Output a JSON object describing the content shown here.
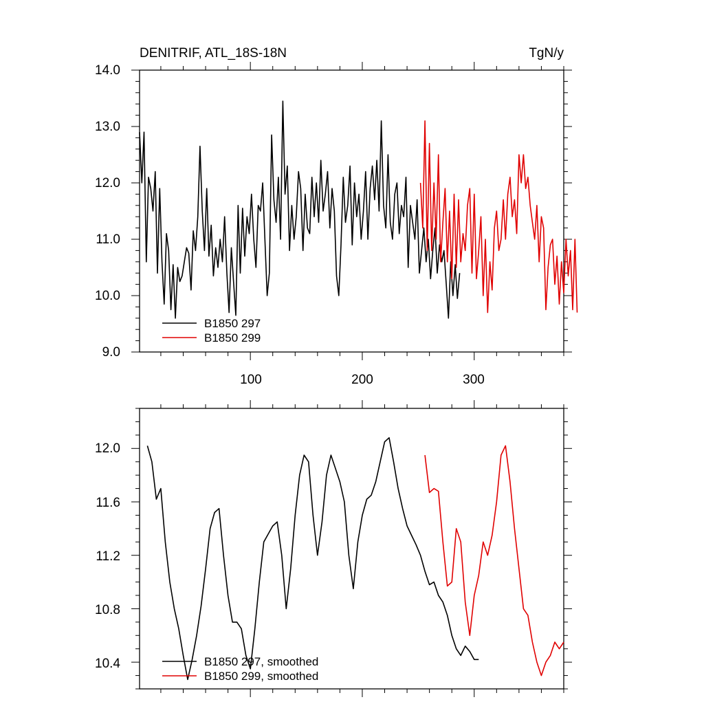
{
  "chart_data": [
    {
      "type": "line",
      "title": "DENITRIF, ATL_18S-18N",
      "units": "TgN/y",
      "xlim": [
        1,
        380
      ],
      "ylim": [
        9.0,
        14.0
      ],
      "x_ticks": [
        100,
        200,
        300
      ],
      "x_tick_labels": [
        "100",
        "200",
        "300"
      ],
      "y_ticks": [
        9.0,
        10.0,
        11.0,
        12.0,
        13.0,
        14.0
      ],
      "y_tick_labels": [
        "9.0",
        "10.0",
        "11.0",
        "12.0",
        "13.0",
        "14.0"
      ],
      "legend": [
        "B1850 297",
        "B1850 299"
      ],
      "series": [
        {
          "name": "B1850 297",
          "color": "#000000",
          "x_start": 1,
          "x_step": 2,
          "values": [
            12.9,
            12.0,
            12.9,
            10.6,
            12.1,
            11.9,
            11.5,
            12.2,
            10.4,
            11.9,
            10.6,
            9.85,
            11.1,
            10.8,
            9.75,
            10.55,
            9.6,
            10.5,
            10.25,
            10.35,
            10.6,
            10.85,
            10.75,
            10.1,
            11.15,
            10.8,
            11.4,
            12.65,
            11.5,
            10.8,
            11.9,
            10.7,
            11.25,
            10.35,
            10.85,
            10.5,
            11.0,
            10.6,
            11.4,
            10.4,
            9.7,
            10.85,
            10.25,
            9.65,
            11.6,
            10.4,
            11.55,
            10.7,
            11.4,
            11.1,
            11.8,
            11.0,
            10.5,
            11.6,
            11.5,
            12.0,
            11.0,
            10.0,
            10.4,
            12.85,
            11.7,
            11.3,
            12.1,
            11.0,
            13.45,
            11.8,
            12.3,
            10.8,
            11.6,
            11.0,
            11.4,
            12.2,
            11.9,
            10.8,
            11.8,
            11.2,
            11.1,
            12.1,
            11.4,
            12.0,
            11.3,
            12.4,
            11.5,
            11.8,
            12.2,
            11.2,
            11.9,
            11.5,
            10.35,
            10.0,
            10.9,
            12.1,
            11.3,
            11.6,
            12.3,
            10.9,
            12.0,
            11.4,
            11.8,
            11.0,
            11.5,
            12.2,
            11.0,
            11.9,
            12.3,
            11.7,
            12.4,
            11.5,
            13.1,
            11.6,
            11.2,
            12.5,
            11.3,
            11.0,
            11.8,
            12.0,
            11.1,
            11.6,
            11.4,
            12.1,
            10.5,
            11.6,
            11.3,
            11.0,
            11.7,
            10.4,
            10.8,
            11.2,
            10.6,
            11.0,
            10.3,
            10.8,
            11.2,
            10.4,
            10.9,
            10.6,
            10.8,
            10.2,
            9.6,
            10.6,
            10.0,
            10.55,
            9.95,
            10.4
          ]
        },
        {
          "name": "B1850 299",
          "color": "#e00000",
          "x_start": 252,
          "x_step": 2,
          "values": [
            12.0,
            11.2,
            13.1,
            10.8,
            12.7,
            10.8,
            12.0,
            11.0,
            12.5,
            10.6,
            11.3,
            11.9,
            10.6,
            11.5,
            10.3,
            11.8,
            10.5,
            11.7,
            10.6,
            11.1,
            10.8,
            11.6,
            11.9,
            10.4,
            11.8,
            10.3,
            10.8,
            11.4,
            10.0,
            11.0,
            9.7,
            10.6,
            10.1,
            11.2,
            11.5,
            10.8,
            11.0,
            11.7,
            11.0,
            11.8,
            12.1,
            11.4,
            11.7,
            11.1,
            12.5,
            12.0,
            12.5,
            11.9,
            12.1,
            11.6,
            11.3,
            11.0,
            11.6,
            10.6,
            11.4,
            11.2,
            9.75,
            10.5,
            10.9,
            11.0,
            10.2,
            10.7,
            9.85,
            10.6,
            10.05,
            11.0,
            10.35,
            10.8,
            9.75,
            11.0,
            9.7
          ]
        }
      ]
    },
    {
      "type": "line",
      "title": "",
      "xlim": [
        1,
        380
      ],
      "ylim": [
        10.2,
        12.3
      ],
      "x_ticks": [
        100,
        200,
        300
      ],
      "y_ticks": [
        10.4,
        10.8,
        11.2,
        11.6,
        12.0
      ],
      "y_tick_labels": [
        "10.4",
        "10.8",
        "11.2",
        "11.6",
        "12.0"
      ],
      "legend": [
        "B1850 297, smoothed",
        "B1850 299, smoothed"
      ],
      "series": [
        {
          "name": "B1850 297, smoothed",
          "color": "#000000",
          "x": [
            8,
            12,
            16,
            20,
            24,
            28,
            32,
            36,
            40,
            44,
            48,
            52,
            56,
            60,
            64,
            68,
            72,
            76,
            80,
            84,
            88,
            92,
            96,
            100,
            104,
            108,
            112,
            116,
            120,
            124,
            128,
            132,
            136,
            140,
            144,
            148,
            152,
            156,
            160,
            164,
            168,
            172,
            176,
            180,
            184,
            188,
            192,
            196,
            200,
            204,
            208,
            212,
            216,
            220,
            224,
            228,
            232,
            236,
            240,
            244,
            248,
            252,
            256,
            260,
            264,
            268,
            272,
            276,
            280,
            284,
            288,
            292,
            296,
            300,
            304
          ],
          "values": [
            12.02,
            11.9,
            11.62,
            11.7,
            11.3,
            11.0,
            10.8,
            10.65,
            10.45,
            10.27,
            10.42,
            10.6,
            10.82,
            11.1,
            11.4,
            11.52,
            11.55,
            11.2,
            10.9,
            10.7,
            10.7,
            10.65,
            10.45,
            10.35,
            10.65,
            11.0,
            11.3,
            11.36,
            11.42,
            11.45,
            11.2,
            10.8,
            11.1,
            11.5,
            11.8,
            11.95,
            11.9,
            11.5,
            11.2,
            11.45,
            11.8,
            11.95,
            11.85,
            11.75,
            11.6,
            11.2,
            10.95,
            11.3,
            11.5,
            11.62,
            11.65,
            11.75,
            11.9,
            12.05,
            12.08,
            11.9,
            11.7,
            11.55,
            11.42,
            11.35,
            11.28,
            11.2,
            11.08,
            10.98,
            11.0,
            10.9,
            10.85,
            10.75,
            10.6,
            10.5,
            10.45,
            10.52,
            10.48,
            10.42,
            10.42
          ]
        },
        {
          "name": "B1850 299, smoothed",
          "color": "#e00000",
          "x": [
            256,
            260,
            264,
            268,
            272,
            276,
            280,
            284,
            288,
            292,
            296,
            300,
            304,
            308,
            312,
            316,
            320,
            324,
            328,
            332,
            336,
            340,
            344,
            348,
            352,
            356,
            360,
            364,
            368,
            372,
            376,
            380
          ],
          "values": [
            11.95,
            11.67,
            11.7,
            11.68,
            11.3,
            10.97,
            11.0,
            11.4,
            11.3,
            10.85,
            10.6,
            10.9,
            11.05,
            11.3,
            11.2,
            11.35,
            11.6,
            11.95,
            12.02,
            11.75,
            11.4,
            11.1,
            10.8,
            10.75,
            10.55,
            10.4,
            10.3,
            10.4,
            10.45,
            10.55,
            10.5,
            10.55
          ]
        }
      ]
    }
  ]
}
